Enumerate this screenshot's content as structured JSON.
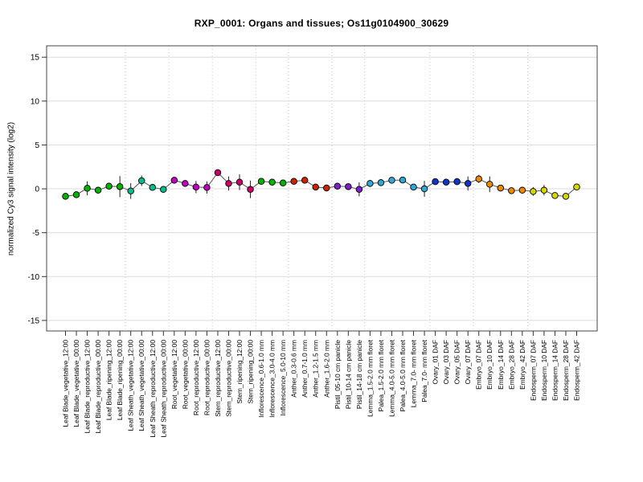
{
  "title": "RXP_0001: Organs and tissues; Os11g0104900_30629",
  "ylabel": "normalized Cy3 signal intensity (log2)",
  "chart_data": {
    "type": "line",
    "title": "RXP_0001: Organs and tissues; Os11g0104900_30629",
    "xlabel": "",
    "ylabel": "normalized Cy3 signal intensity (log2)",
    "ylim": [
      -16.2,
      16.3
    ],
    "yticks": [
      -15,
      -10,
      -5,
      0,
      5,
      10,
      15
    ],
    "grid": true,
    "grid_color": "#dcdcdc",
    "separator_color": "#c8c8c8",
    "line_color": "#555555",
    "error_bar_color": "#222222",
    "marker_outline": "#000000",
    "legend_position": "none",
    "categories": [
      "Leaf Blade_vegetative_12:00",
      "Leaf Blade_vegetative_00:00",
      "Leaf Blade_reproductive_12:00",
      "Leaf Blade_reproductive_00:00",
      "Leaf Blade_ripening_12:00",
      "Leaf Blade_ripening_00:00",
      "Leaf Sheath_vegetative_12:00",
      "Leaf Sheath_vegetative_00:00",
      "Leaf Sheath_reproductive_12:00",
      "Leaf Sheath_reproductive_00:00",
      "Root_vegetative_12:00",
      "Root_vegetative_00:00",
      "Root_reproductive_12:00",
      "Root_reproductive_00:00",
      "Stem_reproductive_12:00",
      "Stem_reproductive_00:00",
      "Stem_ripening_12:00",
      "Stem_ripening_00:00",
      "Inflorescence_0.6-1.0 mm",
      "Inflorescence_3.0-4.0 mm",
      "Inflorescence_5.0-10 mm",
      "Anther_0.3-0.6 mm",
      "Anther_0.7-1.0 mm",
      "Anther_1.2-1.5 mm",
      "Anther_1.6-2.0 mm",
      "Pistil_05-10 cm panicle",
      "Pistil_10-14 cm panicle",
      "Pistil_14-18 cm panicle",
      "Lemma_1.5-2.0 mm floret",
      "Palea_1.5-2.0 mm floret",
      "Lemma_4.0-5.0 mm floret",
      "Palea_4.0-5.0 mm floret",
      "Lemma_7.0- mm floret",
      "Palea_7.0- mm floret",
      "Ovary_01 DAF",
      "Ovary_03 DAF",
      "Ovary_05 DAF",
      "Ovary_07 DAF",
      "Embryo_07 DAF",
      "Embryo_10 DAF",
      "Embryo_14 DAF",
      "Embryo_28 DAF",
      "Embryo_42 DAF",
      "Endosperm_07 DAF",
      "Endosperm_10 DAF",
      "Endosperm_14 DAF",
      "Endosperm_28 DAF",
      "Endosperm_42 DAF"
    ],
    "series": [
      {
        "name": "normalized Cy3 signal intensity",
        "values": [
          -0.85,
          -0.67,
          0.06,
          -0.16,
          0.3,
          0.25,
          -0.25,
          0.92,
          0.16,
          -0.06,
          0.98,
          0.61,
          0.2,
          0.15,
          1.85,
          0.61,
          0.76,
          -0.06,
          0.85,
          0.76,
          0.67,
          0.85,
          0.98,
          0.2,
          0.1,
          0.3,
          0.25,
          -0.06,
          0.61,
          0.7,
          0.98,
          1.0,
          0.2,
          0.0,
          0.82,
          0.76,
          0.82,
          0.61,
          1.13,
          0.52,
          0.09,
          -0.21,
          -0.16,
          -0.3,
          -0.16,
          -0.76,
          -0.85,
          0.21
        ],
        "errors": [
          0.35,
          0.2,
          0.8,
          0.35,
          0.25,
          1.2,
          0.9,
          0.6,
          0.3,
          0.3,
          0.25,
          0.2,
          0.7,
          0.7,
          0.3,
          0.8,
          0.9,
          1.0,
          0.35,
          0.3,
          0.25,
          0.3,
          0.3,
          0.25,
          0.2,
          0.2,
          0.2,
          0.8,
          0.4,
          0.4,
          0.3,
          0.3,
          0.35,
          0.9,
          0.3,
          0.3,
          0.4,
          0.8,
          0.45,
          0.9,
          0.25,
          0.2,
          0.25,
          0.5,
          0.6,
          0.2,
          0.2,
          0.35
        ]
      }
    ],
    "groups": [
      {
        "name": "Leaf Blade",
        "count": 6,
        "color": "#00b400"
      },
      {
        "name": "Leaf Sheath",
        "count": 4,
        "color": "#00be8c"
      },
      {
        "name": "Root",
        "count": 4,
        "color": "#c000c0"
      },
      {
        "name": "Stem",
        "count": 4,
        "color": "#cc0066"
      },
      {
        "name": "Inflorescence",
        "count": 3,
        "color": "#00b400"
      },
      {
        "name": "Anther",
        "count": 4,
        "color": "#cc2200"
      },
      {
        "name": "Pistil",
        "count": 3,
        "color": "#7a1fc9"
      },
      {
        "name": "Lemma/Palea",
        "count": 6,
        "color": "#2fa8d5"
      },
      {
        "name": "Ovary",
        "count": 4,
        "color": "#1133cc"
      },
      {
        "name": "Embryo",
        "count": 5,
        "color": "#ee8800"
      },
      {
        "name": "Endosperm",
        "count": 5,
        "color": "#d6d600"
      }
    ]
  }
}
